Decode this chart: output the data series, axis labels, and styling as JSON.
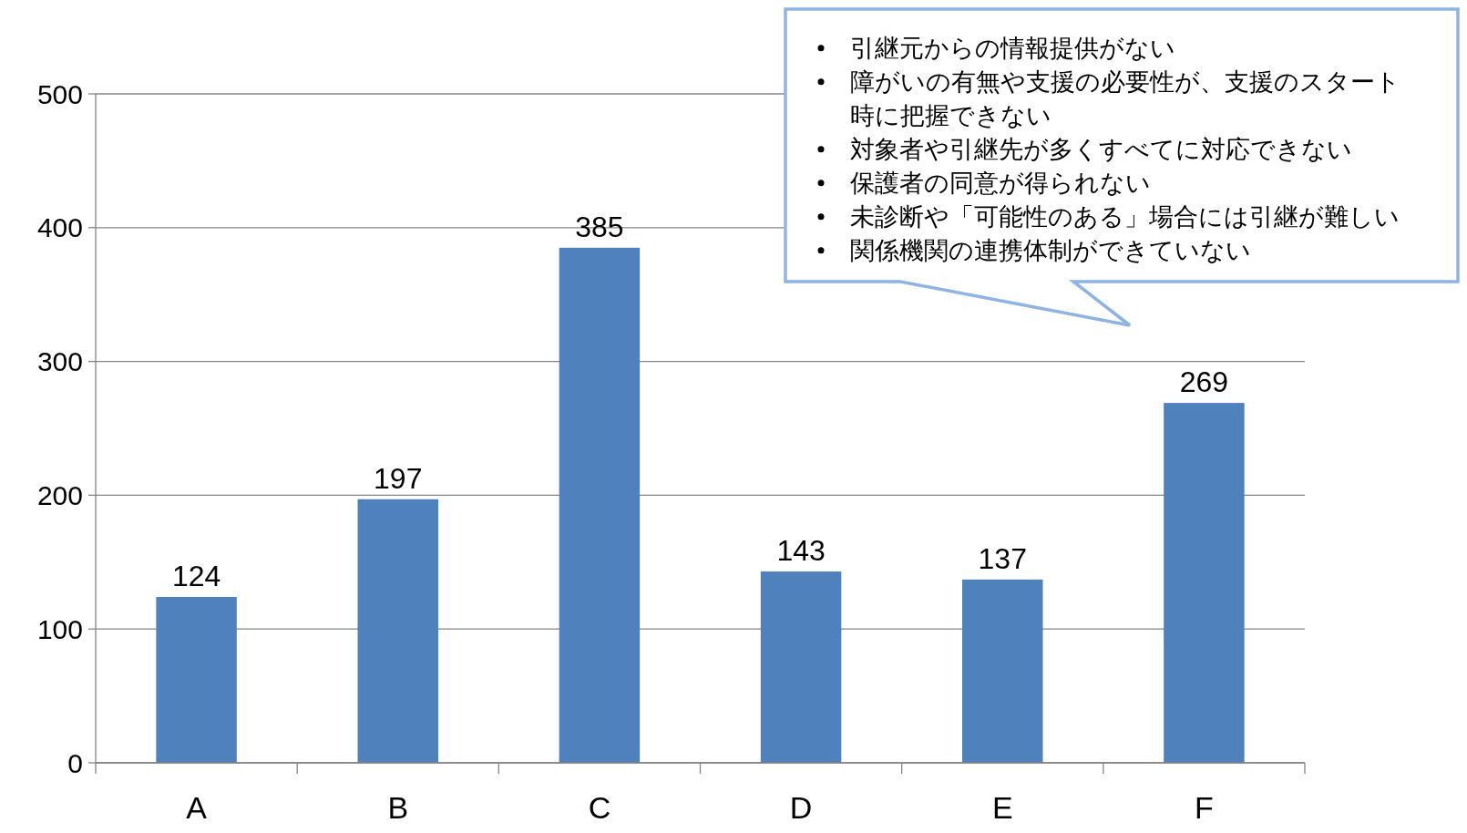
{
  "chart_data": {
    "type": "bar",
    "categories": [
      "A",
      "B",
      "C",
      "D",
      "E",
      "F"
    ],
    "values": [
      124,
      197,
      385,
      143,
      137,
      269
    ],
    "color": "#4f81bd",
    "ylim": [
      0,
      500
    ],
    "yticks": [
      0,
      100,
      200,
      300,
      400,
      500
    ],
    "grid": "y",
    "data_labels": true,
    "annotations": [
      "引継元からの情報提供がない",
      "障がいの有無や支援の必要性が、支援のスタート時に把握できない",
      "対象者や引継先が多くすべてに対応できない",
      "保護者の同意が得られない",
      "未診断や「可能性のある」場合には引継が難しい",
      "関係機関の連携体制ができていない"
    ]
  }
}
